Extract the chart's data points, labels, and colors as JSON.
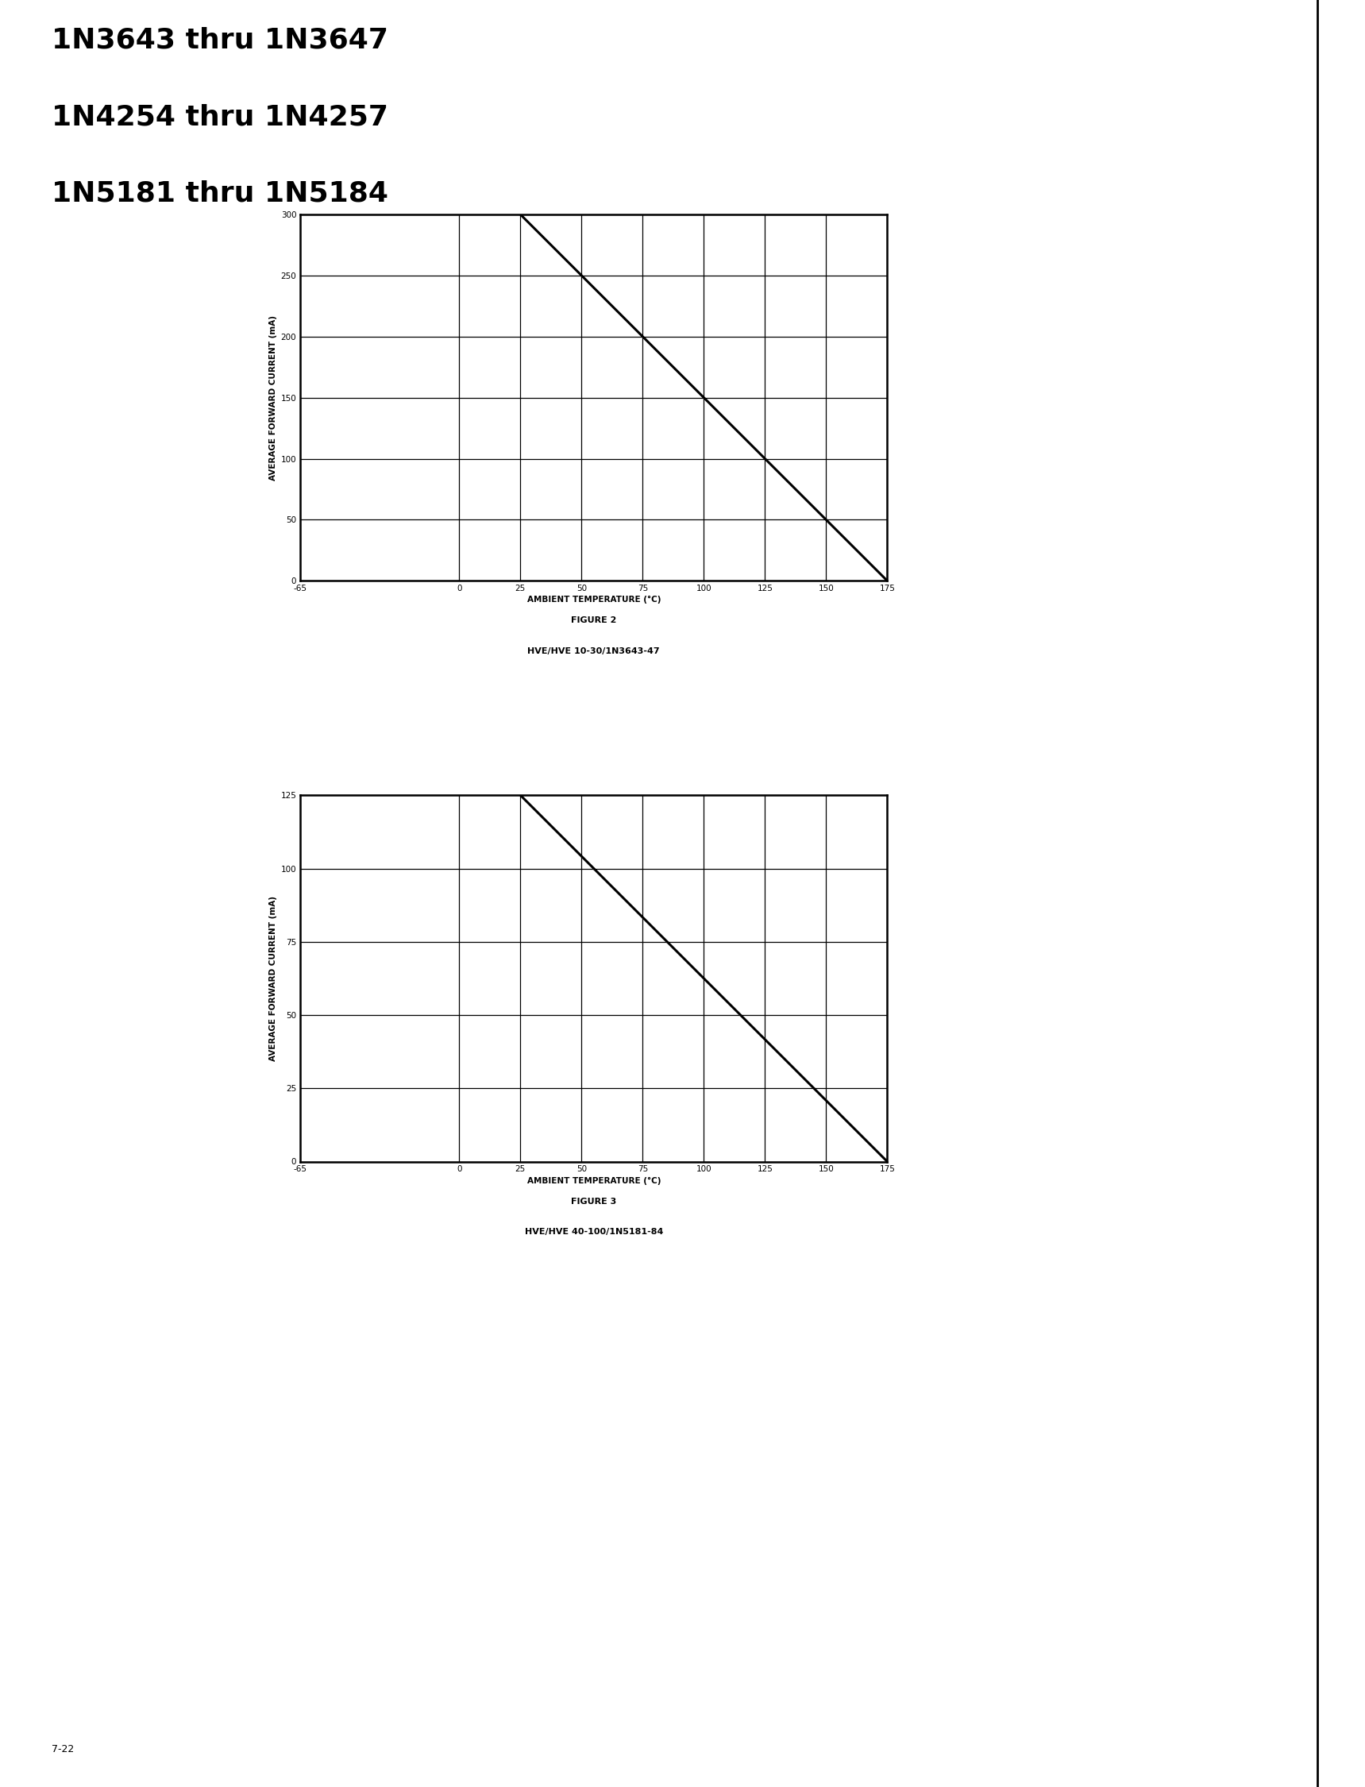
{
  "title_lines": [
    "1N3643 thru 1N3647",
    "1N4254 thru 1N4257",
    "1N5181 thru 1N5184"
  ],
  "fig2": {
    "xlabel": "AMBIENT TEMPERATURE (°C)",
    "ylabel": "AVERAGE FORWARD CURRENT (mA)",
    "caption_line1": "FIGURE 2",
    "caption_line2": "HVE/HVE 10-30/1N3643-47",
    "xlim": [
      -65,
      175
    ],
    "ylim": [
      0,
      300
    ],
    "xticks": [
      -65,
      0,
      25,
      50,
      75,
      100,
      125,
      150,
      175
    ],
    "yticks": [
      0,
      50,
      100,
      150,
      200,
      250,
      300
    ],
    "line_x": [
      25,
      175
    ],
    "line_y": [
      300,
      0
    ]
  },
  "fig3": {
    "xlabel": "AMBIENT TEMPERATURE (°C)",
    "ylabel": "AVERAGE FORWARD CURRENT (mA)",
    "caption_line1": "FIGURE 3",
    "caption_line2": "HVE/HVE 40-100/1N5181-84",
    "xlim": [
      -65,
      175
    ],
    "ylim": [
      0,
      125
    ],
    "xticks": [
      -65,
      0,
      25,
      50,
      75,
      100,
      125,
      150,
      175
    ],
    "yticks": [
      0,
      25,
      50,
      75,
      100,
      125
    ],
    "line_x": [
      25,
      175
    ],
    "line_y": [
      125,
      0
    ]
  },
  "page_num": "7-22",
  "bg_color": "#ffffff",
  "line_color": "#000000",
  "grid_color": "#000000",
  "title_fontsize": 26,
  "axis_label_fontsize": 7.5,
  "tick_fontsize": 7.5,
  "caption_fontsize": 8
}
